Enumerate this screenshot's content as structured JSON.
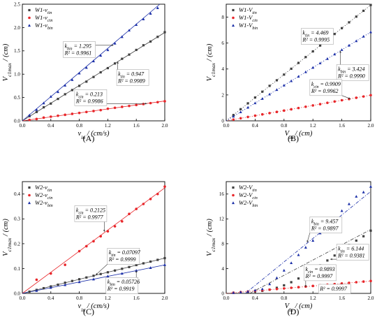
{
  "chart_data": [
    {
      "type": "scatter",
      "panel_label": "(A)",
      "xlabel": "v_in / (cm/s)",
      "ylabel": "V_c1max / (cm)",
      "xlim": [
        0,
        2.0
      ],
      "ylim": [
        0,
        2.5
      ],
      "xticks": [
        "0.0",
        "0.4",
        "0.8",
        "1.2",
        "1.6",
        "2.0"
      ],
      "yticks": [
        "0.0",
        "0.5",
        "1.0",
        "1.5",
        "2.0",
        "2.5"
      ],
      "legend_position": "top-left",
      "series": [
        {
          "name": "W1-v_tin",
          "color": "#404040",
          "marker": "square",
          "line_style": "solid",
          "fit": {
            "slope": 0.947,
            "intercept": 0
          },
          "x": [
            0.1,
            0.2,
            0.3,
            0.4,
            0.5,
            0.6,
            0.7,
            0.8,
            0.9,
            1.0,
            1.1,
            1.2,
            1.3,
            1.4,
            1.5,
            1.6,
            1.7,
            1.8,
            1.9,
            2.0
          ],
          "y": [
            0.1,
            0.19,
            0.29,
            0.37,
            0.47,
            0.57,
            0.66,
            0.75,
            0.84,
            0.94,
            1.04,
            1.13,
            1.23,
            1.33,
            1.42,
            1.52,
            1.62,
            1.7,
            1.8,
            1.9
          ]
        },
        {
          "name": "W1-v_cin",
          "color": "#e8262a",
          "marker": "circle",
          "line_style": "solid",
          "fit": {
            "slope": 0.213,
            "intercept": 0
          },
          "x": [
            0.1,
            0.2,
            0.3,
            0.4,
            0.5,
            0.6,
            0.7,
            0.8,
            0.9,
            1.0,
            1.1,
            1.2,
            1.3,
            1.4,
            1.5,
            1.6,
            1.7,
            1.8,
            1.9,
            2.0
          ],
          "y": [
            0.02,
            0.04,
            0.07,
            0.09,
            0.11,
            0.13,
            0.15,
            0.17,
            0.19,
            0.21,
            0.23,
            0.26,
            0.28,
            0.3,
            0.32,
            0.34,
            0.36,
            0.38,
            0.4,
            0.42
          ]
        },
        {
          "name": "W1-v_bin",
          "color": "#1b2fa8",
          "marker": "triangle",
          "line_style": "solid",
          "fit": {
            "slope": 1.295,
            "intercept": 0
          },
          "x": [
            0.1,
            0.2,
            0.3,
            0.4,
            0.5,
            0.6,
            0.7,
            0.8,
            0.9,
            1.0,
            1.1,
            1.2,
            1.3,
            1.4,
            1.5,
            1.6,
            1.7,
            1.8,
            1.9
          ],
          "y": [
            0.12,
            0.24,
            0.38,
            0.52,
            0.62,
            0.76,
            0.88,
            1.02,
            1.14,
            1.28,
            1.4,
            1.52,
            1.66,
            1.8,
            1.94,
            2.06,
            2.18,
            2.3,
            2.42
          ]
        }
      ],
      "annotations": [
        {
          "k_text": "k_bin = 1.295",
          "r2_text": "R² = 0.9961",
          "x": 0.8,
          "y": 1.55,
          "arrow_x": 1.28,
          "arrow_y": 1.62
        },
        {
          "k_text": "k_tin = 0.947",
          "r2_text": "R² = 0.9989",
          "x": 1.55,
          "y": 0.95,
          "arrow_x": 1.34,
          "arrow_y": 1.27
        },
        {
          "k_text": "k_cin = 0.213",
          "r2_text": "R² = 0.9986",
          "x": 0.96,
          "y": 0.52,
          "arrow_x": 1.75,
          "arrow_y": 0.37
        }
      ]
    },
    {
      "type": "scatter",
      "panel_label": "(B)",
      "xlabel": "V_in / (cm)",
      "ylabel": "V_c1max / (cm)",
      "xlim": [
        0,
        2.0
      ],
      "ylim": [
        0,
        9
      ],
      "xticks": [
        "0.0",
        "0.4",
        "0.8",
        "1.2",
        "1.6",
        "2.0"
      ],
      "yticks": [
        "0",
        "2",
        "4",
        "6",
        "8"
      ],
      "legend_position": "top-left",
      "series": [
        {
          "name": "W1-V_tin",
          "color": "#404040",
          "marker": "square",
          "line_style": "dotted",
          "fit": {
            "slope": 4.469,
            "intercept": 0
          },
          "x": [
            0.1,
            0.2,
            0.3,
            0.4,
            0.5,
            0.6,
            0.7,
            0.8,
            0.9,
            1.0,
            1.1,
            1.2,
            1.3,
            1.4,
            1.5,
            1.6,
            1.7,
            1.8,
            1.9,
            2.0
          ],
          "y": [
            0.45,
            0.9,
            1.35,
            1.8,
            2.25,
            2.7,
            3.13,
            3.57,
            4.02,
            4.47,
            4.92,
            5.36,
            5.81,
            6.26,
            6.7,
            7.15,
            7.6,
            8.04,
            8.49,
            8.94
          ]
        },
        {
          "name": "W1-V_cin",
          "color": "#e8262a",
          "marker": "circle",
          "line_style": "dotted",
          "fit": {
            "slope": 0.9909,
            "intercept": 0
          },
          "x": [
            0.1,
            0.2,
            0.3,
            0.4,
            0.5,
            0.6,
            0.7,
            0.8,
            0.9,
            1.0,
            1.1,
            1.2,
            1.3,
            1.4,
            1.5,
            1.6,
            1.7,
            1.8,
            1.9,
            2.0
          ],
          "y": [
            0.1,
            0.2,
            0.3,
            0.4,
            0.5,
            0.6,
            0.69,
            0.79,
            0.89,
            0.99,
            1.09,
            1.19,
            1.29,
            1.39,
            1.49,
            1.59,
            1.68,
            1.78,
            1.88,
            1.98
          ]
        },
        {
          "name": "W1-V_bin",
          "color": "#1b2fa8",
          "marker": "triangle",
          "line_style": "dotted",
          "fit": {
            "slope": 3.424,
            "intercept": 0
          },
          "x": [
            0.1,
            0.2,
            0.3,
            0.4,
            0.5,
            0.6,
            0.7,
            0.8,
            0.9,
            1.0,
            1.1,
            1.2,
            1.3,
            1.4,
            1.5,
            1.6,
            1.7,
            1.8,
            1.9,
            2.0
          ],
          "y": [
            0.34,
            0.68,
            1.03,
            1.37,
            1.71,
            2.05,
            2.4,
            2.74,
            3.08,
            3.42,
            3.77,
            4.11,
            4.45,
            4.79,
            5.14,
            5.48,
            5.82,
            6.16,
            6.51,
            6.85
          ]
        }
      ],
      "annotations": [
        {
          "k_text": "k_tin = 4.469",
          "r2_text": "R² = 0.9995",
          "x": 1.26,
          "y": 6.6,
          "arrow_x": 1.36,
          "arrow_y": 6.05
        },
        {
          "k_text": "k_bin = 3.424",
          "r2_text": "R² = 0.9990",
          "x": 1.75,
          "y": 3.8,
          "arrow_x": 1.58,
          "arrow_y": 5.4
        },
        {
          "k_text": "k_cin = 0.9909",
          "r2_text": "R² = 0.9962",
          "x": 1.38,
          "y": 2.65,
          "arrow_x": 1.72,
          "arrow_y": 1.7
        }
      ]
    },
    {
      "type": "scatter",
      "panel_label": "(C)",
      "xlabel": "v_in / (cm/s)",
      "ylabel": "V_c1max / (cm)",
      "xlim": [
        0,
        2.0
      ],
      "ylim": [
        0,
        0.45
      ],
      "xticks": [
        "0.0",
        "0.4",
        "0.8",
        "1.2",
        "1.6",
        "2.0"
      ],
      "yticks": [
        "0.0",
        "0.1",
        "0.2",
        "0.3",
        "0.4"
      ],
      "legend_position": "top-left",
      "series": [
        {
          "name": "W2-v_tin",
          "color": "#404040",
          "marker": "square",
          "line_style": "solid",
          "fit": {
            "slope": 0.07097,
            "intercept": 0
          },
          "x": [
            0.1,
            0.2,
            0.3,
            0.4,
            0.5,
            0.6,
            0.7,
            0.8,
            0.9,
            1.0,
            1.1,
            1.2,
            1.3,
            1.4,
            1.5,
            1.6,
            1.7,
            1.8,
            1.9,
            2.0
          ],
          "y": [
            0.007,
            0.014,
            0.021,
            0.028,
            0.035,
            0.043,
            0.05,
            0.057,
            0.064,
            0.071,
            0.078,
            0.085,
            0.092,
            0.099,
            0.106,
            0.114,
            0.121,
            0.128,
            0.135,
            0.142
          ]
        },
        {
          "name": "W2-v_cin",
          "color": "#e8262a",
          "marker": "circle",
          "line_style": "solid",
          "fit": {
            "slope": 0.2125,
            "intercept": 0
          },
          "x": [
            0.2,
            0.4,
            0.6,
            0.8,
            0.9,
            1.0,
            1.1,
            1.2,
            1.3,
            1.4,
            1.5,
            1.6,
            1.7,
            1.8,
            1.9,
            2.0
          ],
          "y": [
            0.055,
            0.08,
            0.115,
            0.17,
            0.19,
            0.21,
            0.23,
            0.25,
            0.27,
            0.29,
            0.32,
            0.34,
            0.36,
            0.38,
            0.4,
            0.43
          ]
        },
        {
          "name": "W2-v_bin",
          "color": "#1b2fa8",
          "marker": "triangle",
          "line_style": "solid",
          "fit": {
            "slope": 0.05726,
            "intercept": 0
          },
          "x": [
            0.2,
            0.4,
            0.6,
            0.8,
            1.0,
            1.2,
            1.4,
            1.6,
            1.8,
            2.0
          ],
          "y": [
            0.011,
            0.023,
            0.034,
            0.046,
            0.057,
            0.069,
            0.08,
            0.092,
            0.103,
            0.115
          ]
        }
      ],
      "annotations": [
        {
          "k_text": "k_cin = 0.2125",
          "r2_text": "R² = 0.9977",
          "x": 0.96,
          "y": 0.325,
          "arrow_x": 1.15,
          "arrow_y": 0.248
        },
        {
          "k_text": "k_tin = 0.07097",
          "r2_text": "R² = 0.9999",
          "x": 1.42,
          "y": 0.154,
          "arrow_x": 1.03,
          "arrow_y": 0.074
        },
        {
          "k_text": "k_bin = 0.05726",
          "r2_text": "R² = 0.9919",
          "x": 1.4,
          "y": 0.036,
          "arrow_x": 1.6,
          "arrow_y": 0.092
        }
      ]
    },
    {
      "type": "scatter",
      "panel_label": "(D)",
      "xlabel": "V_in / (cm)",
      "ylabel": "V_c1max / (cm)",
      "xlim": [
        0,
        2.0
      ],
      "ylim": [
        0,
        18
      ],
      "xticks": [
        "0.0",
        "0.4",
        "0.8",
        "1.2",
        "1.6",
        "2.0"
      ],
      "yticks": [
        "0",
        "4",
        "8",
        "12",
        "16"
      ],
      "legend_position": "top-left",
      "series": [
        {
          "name": "W2-V_tin",
          "color": "#404040",
          "marker": "square",
          "line_style": "dashdot",
          "fit": {
            "slope": 6.144,
            "intercept": -2.0
          },
          "x": [
            0.1,
            0.2,
            0.3,
            0.4,
            0.5,
            0.6,
            0.7,
            0.8,
            0.9,
            1.0,
            1.1,
            1.2,
            1.3,
            1.4,
            1.5,
            1.6,
            1.7,
            1.8,
            1.9,
            2.0
          ],
          "y": [
            0.1,
            0.15,
            0.2,
            0.3,
            0.4,
            0.6,
            0.9,
            1.3,
            1.8,
            2.4,
            3.1,
            3.8,
            4.5,
            5.3,
            6.1,
            7.0,
            7.8,
            8.5,
            9.2,
            10.1
          ]
        },
        {
          "name": "W2-V_cin",
          "color": "#e8262a",
          "marker": "circle",
          "line_style": "dotted",
          "fit": {
            "slope": 0.9893,
            "intercept": 0
          },
          "x": [
            0.1,
            0.2,
            0.3,
            0.4,
            0.5,
            0.6,
            0.7,
            0.8,
            0.9,
            1.0,
            1.1,
            1.2,
            1.3,
            1.4,
            1.5,
            1.6,
            1.7,
            1.8,
            1.9,
            2.0
          ],
          "y": [
            0.1,
            0.2,
            0.3,
            0.4,
            0.5,
            0.6,
            0.7,
            0.8,
            0.9,
            1.0,
            1.1,
            1.2,
            1.3,
            1.4,
            1.5,
            1.6,
            1.7,
            1.8,
            1.9,
            2.0
          ]
        },
        {
          "name": "W2-V_bin",
          "color": "#1b2fa8",
          "marker": "triangle",
          "line_style": "dashdot",
          "fit": {
            "slope": 9.457,
            "intercept": -2.5
          },
          "x": [
            0.1,
            0.2,
            0.3,
            0.4,
            0.5,
            0.6,
            0.7,
            0.8,
            0.9,
            1.0,
            1.1,
            1.2,
            1.3,
            1.4,
            1.5,
            1.6,
            1.7,
            1.8,
            1.9,
            2.0
          ],
          "y": [
            0.1,
            0.2,
            0.3,
            0.5,
            0.7,
            1.5,
            2.5,
            3.7,
            4.9,
            6.2,
            7.4,
            8.5,
            9.7,
            10.9,
            12.1,
            13.3,
            14.4,
            15.6,
            16.3,
            17.2
          ]
        }
      ],
      "annotations": [
        {
          "k_text": "k_bin = 9.457",
          "r2_text": "R² = 0.9897",
          "x": 1.38,
          "y": 11.2,
          "arrow_x": 1.12,
          "arrow_y": 8.2
        },
        {
          "k_text": "k_tin = 6.144",
          "r2_text": "R² = 0.9381",
          "x": 1.75,
          "y": 6.8,
          "arrow_x": 1.44,
          "arrow_y": 5.5
        },
        {
          "k_text": "k_cin = 0.9893",
          "r2_text": "R² = 0.9997",
          "x": 1.3,
          "y": 3.5,
          "arrow_x": 1.1,
          "arrow_y": 1.0
        },
        {
          "k_text": "",
          "r2_text": "R² = 0.9997",
          "x": 1.5,
          "y": 0.9,
          "arrow_x": 1.6,
          "arrow_y": 1.6
        }
      ]
    }
  ]
}
